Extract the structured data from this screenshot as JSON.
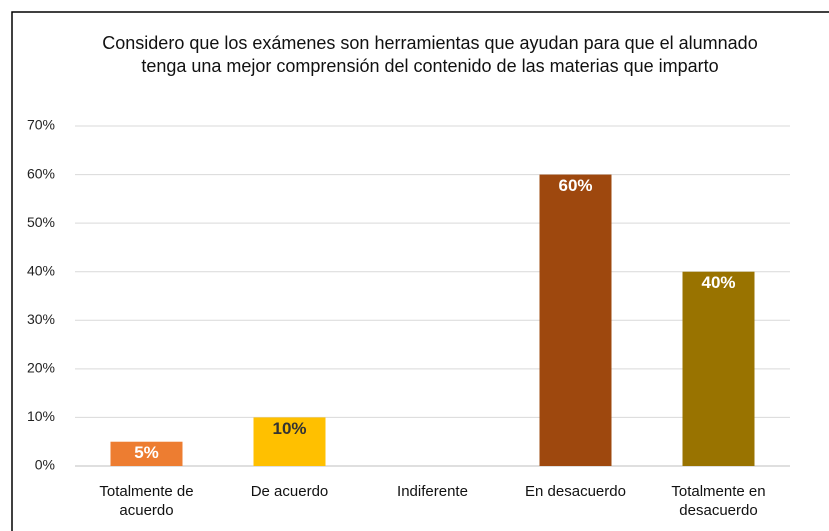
{
  "chart_data": {
    "type": "bar",
    "title": "Considero que los exámenes son herramientas que ayudan para que el alumnado tenga una mejor comprensión del contenido de las materias que imparto",
    "categories": [
      "Totalmente de acuerdo",
      "De acuerdo",
      "Indiferente",
      "En desacuerdo",
      "Totalmente en desacuerdo"
    ],
    "values": [
      5,
      10,
      null,
      60,
      40
    ],
    "value_labels": [
      "5%",
      "10%",
      null,
      "60%",
      "40%"
    ],
    "colors": [
      "#ed7d31",
      "#ffc000",
      null,
      "#9e480e",
      "#997300"
    ],
    "value_label_colors": [
      "#ffffff",
      "#333333",
      null,
      "#ffffff",
      "#ffffff"
    ],
    "ylim": [
      0,
      70
    ],
    "yticks": [
      {
        "value": 0,
        "label": "0%"
      },
      {
        "value": 10,
        "label": "10%"
      },
      {
        "value": 20,
        "label": "20%"
      },
      {
        "value": 30,
        "label": "30%"
      },
      {
        "value": 40,
        "label": "40%"
      },
      {
        "value": 50,
        "label": "50%"
      },
      {
        "value": 60,
        "label": "60%"
      },
      {
        "value": 70,
        "label": "70%"
      }
    ],
    "grid": true
  }
}
